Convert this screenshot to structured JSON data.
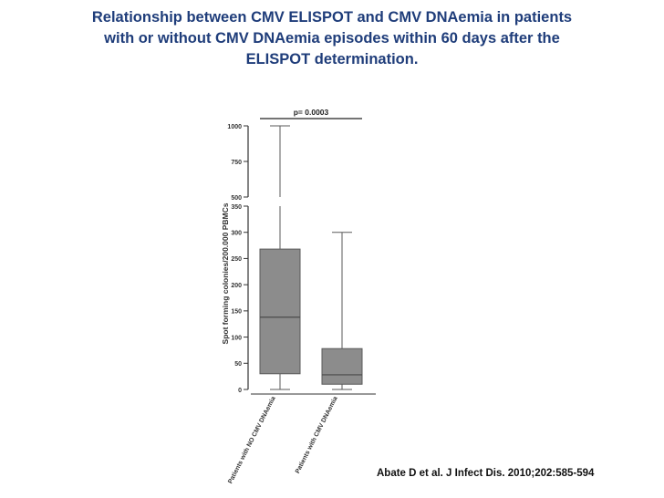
{
  "title_lines": [
    "Relationship between CMV ELISPOT and CMV DNAemia in patients",
    "with or without CMV DNAemia episodes within 60 days after the",
    "ELISPOT determination."
  ],
  "citation": "Abate D et al. J Infect Dis. 2010;202:585-594",
  "chart_data": {
    "type": "box",
    "title": "",
    "ylabel": "Spot forming colonies/200.000 PBMCs",
    "y_axis_break": true,
    "y_segments": [
      {
        "range": [
          0,
          350
        ],
        "ticks": [
          0,
          50,
          100,
          150,
          200,
          250,
          300,
          350
        ]
      },
      {
        "range": [
          500,
          1000
        ],
        "ticks": [
          500,
          750,
          1000
        ]
      }
    ],
    "categories": [
      "Patients with NO CMV DNAemia",
      "Patients with CMV DNAemia"
    ],
    "boxes": [
      {
        "category": "Patients with NO CMV DNAemia",
        "whisker_low": 0,
        "q1": 30,
        "median": 138,
        "q3": 268,
        "whisker_high": 1000
      },
      {
        "category": "Patients with CMV DNAemia",
        "whisker_low": 0,
        "q1": 10,
        "median": 28,
        "q3": 78,
        "whisker_high": 300
      }
    ],
    "annotation": {
      "label": "p= 0.0003",
      "between": [
        0,
        1
      ]
    },
    "colors": {
      "box_fill": "#8c8c8c",
      "stroke": "#5a5a5a",
      "title": "#1f3d7a"
    }
  }
}
